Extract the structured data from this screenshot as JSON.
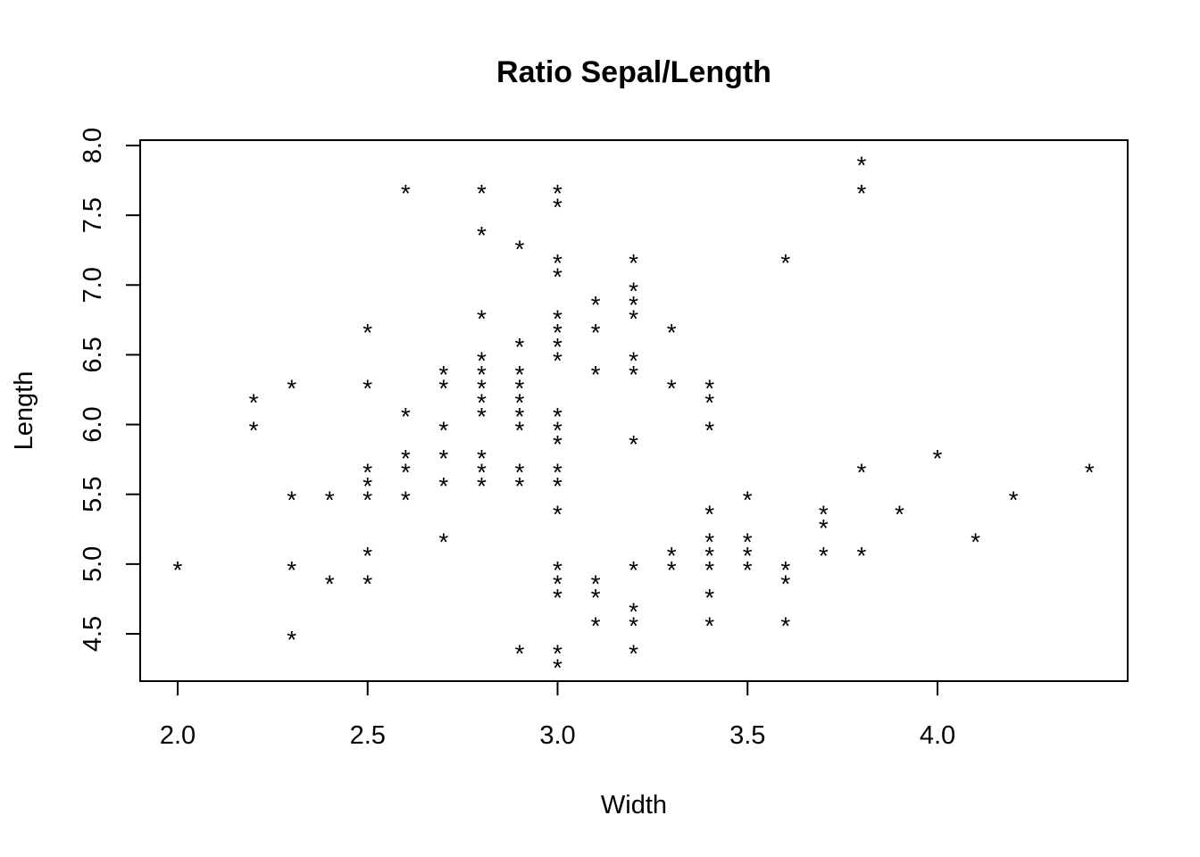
{
  "chart_data": {
    "type": "scatter",
    "title": "Ratio Sepal/Length",
    "xlabel": "Width",
    "ylabel": "Length",
    "marker": "*",
    "xlim": [
      1.9,
      4.5
    ],
    "ylim": [
      4.2,
      8.0
    ],
    "xticks": [
      "2.0",
      "2.5",
      "3.0",
      "3.5",
      "4.0"
    ],
    "xtick_values": [
      2.0,
      2.5,
      3.0,
      3.5,
      4.0
    ],
    "yticks": [
      "4.5",
      "5.0",
      "5.5",
      "6.0",
      "6.5",
      "7.0",
      "7.5",
      "8.0"
    ],
    "ytick_values": [
      4.5,
      5.0,
      5.5,
      6.0,
      6.5,
      7.0,
      7.5,
      8.0
    ],
    "points": [
      [
        2.0,
        5.0
      ],
      [
        2.2,
        6.2
      ],
      [
        2.2,
        6.0
      ],
      [
        2.3,
        6.3
      ],
      [
        2.3,
        5.5
      ],
      [
        2.3,
        5.0
      ],
      [
        2.3,
        4.5
      ],
      [
        2.4,
        5.5
      ],
      [
        2.4,
        4.9
      ],
      [
        2.5,
        6.7
      ],
      [
        2.5,
        6.3
      ],
      [
        2.5,
        5.7
      ],
      [
        2.5,
        5.6
      ],
      [
        2.5,
        5.5
      ],
      [
        2.5,
        5.1
      ],
      [
        2.5,
        4.9
      ],
      [
        2.6,
        7.7
      ],
      [
        2.6,
        6.1
      ],
      [
        2.6,
        5.8
      ],
      [
        2.6,
        5.7
      ],
      [
        2.6,
        5.5
      ],
      [
        2.7,
        6.4
      ],
      [
        2.7,
        6.3
      ],
      [
        2.7,
        6.0
      ],
      [
        2.7,
        5.8
      ],
      [
        2.7,
        5.6
      ],
      [
        2.7,
        5.2
      ],
      [
        2.8,
        7.7
      ],
      [
        2.8,
        7.4
      ],
      [
        2.8,
        6.8
      ],
      [
        2.8,
        6.5
      ],
      [
        2.8,
        6.4
      ],
      [
        2.8,
        6.3
      ],
      [
        2.8,
        6.2
      ],
      [
        2.8,
        6.1
      ],
      [
        2.8,
        5.8
      ],
      [
        2.8,
        5.7
      ],
      [
        2.8,
        5.6
      ],
      [
        2.9,
        7.3
      ],
      [
        2.9,
        6.6
      ],
      [
        2.9,
        6.4
      ],
      [
        2.9,
        6.3
      ],
      [
        2.9,
        6.2
      ],
      [
        2.9,
        6.1
      ],
      [
        2.9,
        6.0
      ],
      [
        2.9,
        5.7
      ],
      [
        2.9,
        5.6
      ],
      [
        2.9,
        4.4
      ],
      [
        3.0,
        7.7
      ],
      [
        3.0,
        7.6
      ],
      [
        3.0,
        7.2
      ],
      [
        3.0,
        7.1
      ],
      [
        3.0,
        6.8
      ],
      [
        3.0,
        6.7
      ],
      [
        3.0,
        6.6
      ],
      [
        3.0,
        6.5
      ],
      [
        3.0,
        6.1
      ],
      [
        3.0,
        6.0
      ],
      [
        3.0,
        5.9
      ],
      [
        3.0,
        5.7
      ],
      [
        3.0,
        5.6
      ],
      [
        3.0,
        5.4
      ],
      [
        3.0,
        5.0
      ],
      [
        3.0,
        4.9
      ],
      [
        3.0,
        4.8
      ],
      [
        3.0,
        4.4
      ],
      [
        3.0,
        4.3
      ],
      [
        3.1,
        6.9
      ],
      [
        3.1,
        6.7
      ],
      [
        3.1,
        6.4
      ],
      [
        3.1,
        4.9
      ],
      [
        3.1,
        4.8
      ],
      [
        3.1,
        4.6
      ],
      [
        3.2,
        7.2
      ],
      [
        3.2,
        7.0
      ],
      [
        3.2,
        6.9
      ],
      [
        3.2,
        6.8
      ],
      [
        3.2,
        6.5
      ],
      [
        3.2,
        6.4
      ],
      [
        3.2,
        5.9
      ],
      [
        3.2,
        5.0
      ],
      [
        3.2,
        4.7
      ],
      [
        3.2,
        4.6
      ],
      [
        3.2,
        4.4
      ],
      [
        3.3,
        6.7
      ],
      [
        3.3,
        6.3
      ],
      [
        3.3,
        5.1
      ],
      [
        3.3,
        5.0
      ],
      [
        3.4,
        6.3
      ],
      [
        3.4,
        6.2
      ],
      [
        3.4,
        6.0
      ],
      [
        3.4,
        5.4
      ],
      [
        3.4,
        5.2
      ],
      [
        3.4,
        5.1
      ],
      [
        3.4,
        5.0
      ],
      [
        3.4,
        4.8
      ],
      [
        3.4,
        4.6
      ],
      [
        3.5,
        5.5
      ],
      [
        3.5,
        5.2
      ],
      [
        3.5,
        5.1
      ],
      [
        3.5,
        5.0
      ],
      [
        3.6,
        7.2
      ],
      [
        3.6,
        5.0
      ],
      [
        3.6,
        4.9
      ],
      [
        3.6,
        4.6
      ],
      [
        3.7,
        5.4
      ],
      [
        3.7,
        5.3
      ],
      [
        3.7,
        5.1
      ],
      [
        3.8,
        7.9
      ],
      [
        3.8,
        7.7
      ],
      [
        3.8,
        5.7
      ],
      [
        3.8,
        5.1
      ],
      [
        3.9,
        5.4
      ],
      [
        4.0,
        5.8
      ],
      [
        4.1,
        5.2
      ],
      [
        4.2,
        5.5
      ],
      [
        4.4,
        5.7
      ]
    ]
  }
}
